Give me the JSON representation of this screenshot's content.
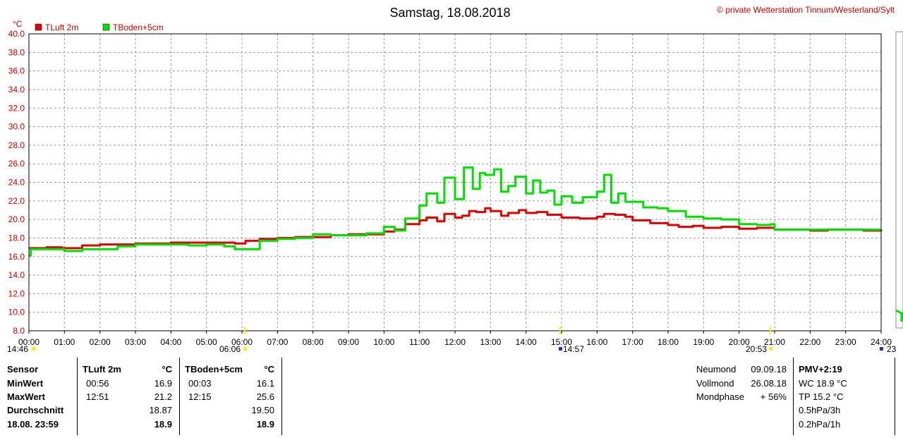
{
  "header": {
    "title": "Samstag, 18.08.2018",
    "credit": "© private Wetterstation Tinnum/Westerland/Sylt",
    "unit": "°C"
  },
  "chart_data": {
    "type": "line",
    "title": "Samstag, 18.08.2018",
    "ylabel": "°C",
    "xlabel": "",
    "ylim": [
      8.0,
      40.0
    ],
    "xlim": [
      0,
      24
    ],
    "y_ticks": [
      "8.0",
      "10.0",
      "12.0",
      "14.0",
      "16.0",
      "18.0",
      "20.0",
      "22.0",
      "24.0",
      "26.0",
      "28.0",
      "30.0",
      "32.0",
      "34.0",
      "36.0",
      "38.0",
      "40.0"
    ],
    "x_ticks": [
      "00:00",
      "01:00",
      "02:00",
      "03:00",
      "04:00",
      "05:00",
      "06:00",
      "07:00",
      "08:00",
      "09:00",
      "10:00",
      "11:00",
      "12:00",
      "13:00",
      "14:00",
      "15:00",
      "16:00",
      "17:00",
      "18:00",
      "19:00",
      "20:00",
      "21:00",
      "22:00",
      "23:00",
      "24:00"
    ],
    "grid": true,
    "legend_position": "top-left",
    "series": [
      {
        "name": "TLuft 2m",
        "color": "#e00000",
        "x": [
          0,
          0.5,
          0.94,
          1.5,
          2,
          3,
          4,
          5,
          5.8,
          6.1,
          6.5,
          7,
          7.5,
          8,
          8.5,
          9,
          9.5,
          10,
          10.3,
          10.6,
          11,
          11.2,
          11.5,
          11.7,
          12,
          12.2,
          12.4,
          12.6,
          12.85,
          13,
          13.3,
          13.5,
          13.8,
          14,
          14.3,
          14.6,
          15,
          15.5,
          16,
          16.2,
          16.5,
          16.8,
          17,
          17.5,
          18,
          18.3,
          18.7,
          19,
          19.5,
          20,
          20.5,
          21,
          21.5,
          22,
          22.5,
          23,
          23.5,
          24
        ],
        "y": [
          16.9,
          17.0,
          16.9,
          17.2,
          17.3,
          17.4,
          17.5,
          17.5,
          17.4,
          17.7,
          17.9,
          18.0,
          18.1,
          18.1,
          18.3,
          18.4,
          18.4,
          18.7,
          18.9,
          19.5,
          19.9,
          20.2,
          19.8,
          20.6,
          20.2,
          20.4,
          20.9,
          20.8,
          21.2,
          20.9,
          20.4,
          20.7,
          21.0,
          20.7,
          20.8,
          20.5,
          20.2,
          20.1,
          20.3,
          20.6,
          20.5,
          20.3,
          19.9,
          19.6,
          19.4,
          19.2,
          19.3,
          19.1,
          19.2,
          19.0,
          19.1,
          18.9,
          18.9,
          18.8,
          18.9,
          18.9,
          18.8,
          18.9
        ]
      },
      {
        "name": "TBoden+5cm",
        "color": "#00e000",
        "x": [
          0,
          0.05,
          0.5,
          1,
          1.5,
          2,
          2.5,
          3,
          3.5,
          4,
          4.5,
          5,
          5.5,
          5.8,
          6,
          6.5,
          7,
          7.5,
          8,
          8.5,
          9,
          9.5,
          10,
          10.3,
          10.6,
          11,
          11.2,
          11.5,
          11.7,
          12,
          12.25,
          12.5,
          12.7,
          12.85,
          13.1,
          13.3,
          13.5,
          13.7,
          14,
          14.2,
          14.4,
          14.6,
          14.8,
          15,
          15.3,
          15.6,
          16,
          16.2,
          16.4,
          16.6,
          16.8,
          17,
          17.3,
          17.7,
          18,
          18.5,
          19,
          19.5,
          20,
          20.5,
          20.9,
          21,
          21.5,
          22,
          23,
          24
        ],
        "y": [
          16.1,
          16.8,
          16.8,
          16.6,
          16.8,
          16.8,
          17.1,
          17.3,
          17.3,
          17.3,
          17.2,
          17.3,
          17.1,
          16.8,
          16.8,
          17.7,
          17.9,
          18.0,
          18.4,
          18.3,
          18.3,
          18.5,
          19.2,
          18.8,
          20.1,
          21.5,
          22.8,
          21.8,
          24.5,
          22.2,
          25.6,
          23.3,
          25.0,
          24.8,
          25.4,
          23.0,
          23.6,
          24.6,
          22.8,
          24.2,
          22.9,
          23.1,
          21.6,
          22.5,
          21.8,
          22.4,
          23.0,
          24.8,
          21.8,
          22.8,
          21.9,
          21.9,
          21.3,
          21.2,
          20.9,
          20.3,
          20.1,
          20.0,
          19.5,
          19.4,
          19.5,
          18.9,
          18.9,
          18.9,
          18.9,
          18.9
        ]
      }
    ],
    "annotations": {
      "below_axis": [
        "14:46",
        "06:06",
        "14:57",
        "20:53",
        "23"
      ]
    }
  },
  "stats": {
    "header": {
      "sensor": "Sensor",
      "col1": "TLuft 2m",
      "unit1": "°C",
      "col2": "TBoden+5cm",
      "unit2": "°C"
    },
    "rows": [
      {
        "label": "MinWert",
        "t1": "00:56",
        "v1": "16.9",
        "t2": "00:03",
        "v2": "16.1"
      },
      {
        "label": "MaxWert",
        "t1": "12:51",
        "v1": "21.2",
        "t2": "12:15",
        "v2": "25.6"
      },
      {
        "label": "Durchschnitt",
        "t1": "",
        "v1": "18.87",
        "t2": "",
        "v2": "19.50"
      },
      {
        "label": "18.08. 23:59",
        "t1": "",
        "v1": "18.9",
        "t2": "",
        "v2": "18.9"
      }
    ]
  },
  "moon": [
    {
      "label": "Neumond",
      "value": "09.09.18"
    },
    {
      "label": "Vollmond",
      "value": "26.08.18"
    },
    {
      "label": "Mondphase",
      "value": "+ 56%"
    }
  ],
  "comfort": [
    {
      "text": "PMV+2:19",
      "bold": true
    },
    {
      "text": "WC 18.9 °C",
      "bold": false
    },
    {
      "text": "TP 15.2 °C",
      "bold": false
    },
    {
      "text": "0.5hPa/3h",
      "bold": false
    },
    {
      "text": "0.2hPa/1h",
      "bold": false
    }
  ]
}
